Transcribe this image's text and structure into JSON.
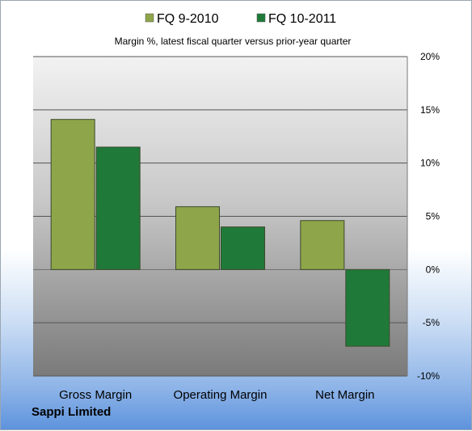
{
  "chart_data": {
    "type": "bar",
    "title": "Margin %,  latest fiscal quarter versus prior-year quarter",
    "categories": [
      "Gross Margin",
      "Operating Margin",
      "Net Margin"
    ],
    "series": [
      {
        "name": "FQ 9-2010",
        "values": [
          14.1,
          5.9,
          4.6
        ],
        "color": "#8ea54a"
      },
      {
        "name": "FQ 10-2011",
        "values": [
          11.5,
          4.0,
          -7.2
        ],
        "color": "#1f7a3a"
      }
    ],
    "ylim": [
      -10,
      20
    ],
    "yticks": [
      -10,
      -5,
      0,
      5,
      10,
      15,
      20
    ],
    "ytick_labels": [
      "-10%",
      "-5%",
      "0%",
      "5%",
      "10%",
      "15%",
      "20%"
    ],
    "grid": true,
    "legend": "top-center",
    "footer": "Sappi Limited"
  }
}
